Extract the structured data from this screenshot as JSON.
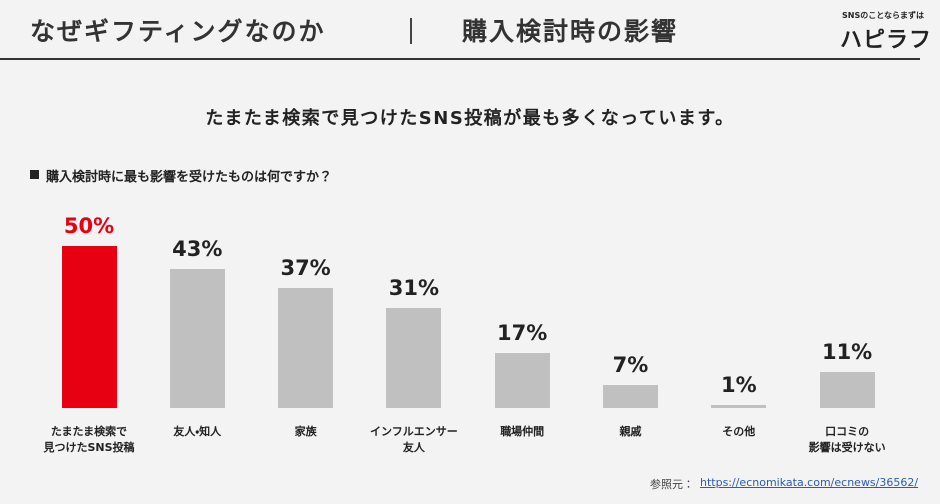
{
  "header": {
    "title": "なぜギフティングなのか",
    "subtitle": "購入検討時の影響",
    "logo_tagline": "SNSのことならまずは",
    "logo": "ハピラフ"
  },
  "chart_data": {
    "type": "bar",
    "title": "たまたま検索で見つけたSNS投稿が最も多くなっています。",
    "question": "購入検討時に最も影響を受けたものは何ですか？",
    "categories": [
      "たまたま検索で\n見つけたSNS投稿",
      "友人・知人",
      "家族",
      "インフルエンサー\n友人",
      "職場仲間",
      "親戚",
      "その他",
      "口コミの\n影響は受けない"
    ],
    "values": [
      50,
      43,
      37,
      31,
      17,
      7,
      1,
      11
    ],
    "value_labels": [
      "50%",
      "43%",
      "37%",
      "31%",
      "17%",
      "7%",
      "1%",
      "11%"
    ],
    "colors": [
      "#e60012",
      "#c0c0c0",
      "#c0c0c0",
      "#c0c0c0",
      "#c0c0c0",
      "#c0c0c0",
      "#c0c0c0",
      "#c0c0c0"
    ],
    "value_label_colors": [
      "#e60012",
      "#222222",
      "#222222",
      "#222222",
      "#222222",
      "#222222",
      "#222222",
      "#222222"
    ]
  },
  "source": {
    "label": "参照元：",
    "url": "https://ecnomikata.com/ecnews/36562/"
  }
}
